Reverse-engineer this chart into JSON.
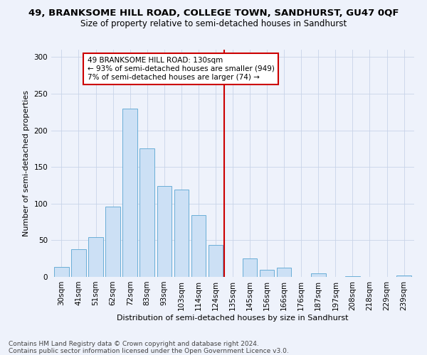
{
  "title": "49, BRANKSOME HILL ROAD, COLLEGE TOWN, SANDHURST, GU47 0QF",
  "subtitle": "Size of property relative to semi-detached houses in Sandhurst",
  "xlabel": "Distribution of semi-detached houses by size in Sandhurst",
  "ylabel": "Number of semi-detached properties",
  "categories": [
    "30sqm",
    "41sqm",
    "51sqm",
    "62sqm",
    "72sqm",
    "83sqm",
    "93sqm",
    "103sqm",
    "114sqm",
    "124sqm",
    "135sqm",
    "145sqm",
    "156sqm",
    "166sqm",
    "176sqm",
    "187sqm",
    "197sqm",
    "208sqm",
    "218sqm",
    "229sqm",
    "239sqm"
  ],
  "values": [
    14,
    38,
    54,
    96,
    230,
    175,
    124,
    119,
    84,
    44,
    0,
    25,
    10,
    13,
    0,
    5,
    0,
    1,
    0,
    0,
    2
  ],
  "bar_color": "#cce0f5",
  "bar_edgecolor": "#6aaed6",
  "vline_x_index": 10,
  "vline_color": "#cc0000",
  "annotation_text": "49 BRANKSOME HILL ROAD: 130sqm\n← 93% of semi-detached houses are smaller (949)\n7% of semi-detached houses are larger (74) →",
  "annotation_box_edgecolor": "#cc0000",
  "ylim": [
    0,
    310
  ],
  "yticks": [
    0,
    50,
    100,
    150,
    200,
    250,
    300
  ],
  "grid_color": "#c8d4e8",
  "background_color": "#eef2fb",
  "footer": "Contains HM Land Registry data © Crown copyright and database right 2024.\nContains public sector information licensed under the Open Government Licence v3.0.",
  "title_fontsize": 9.5,
  "subtitle_fontsize": 8.5,
  "xlabel_fontsize": 8,
  "ylabel_fontsize": 8,
  "tick_fontsize": 7.5,
  "footer_fontsize": 6.5
}
